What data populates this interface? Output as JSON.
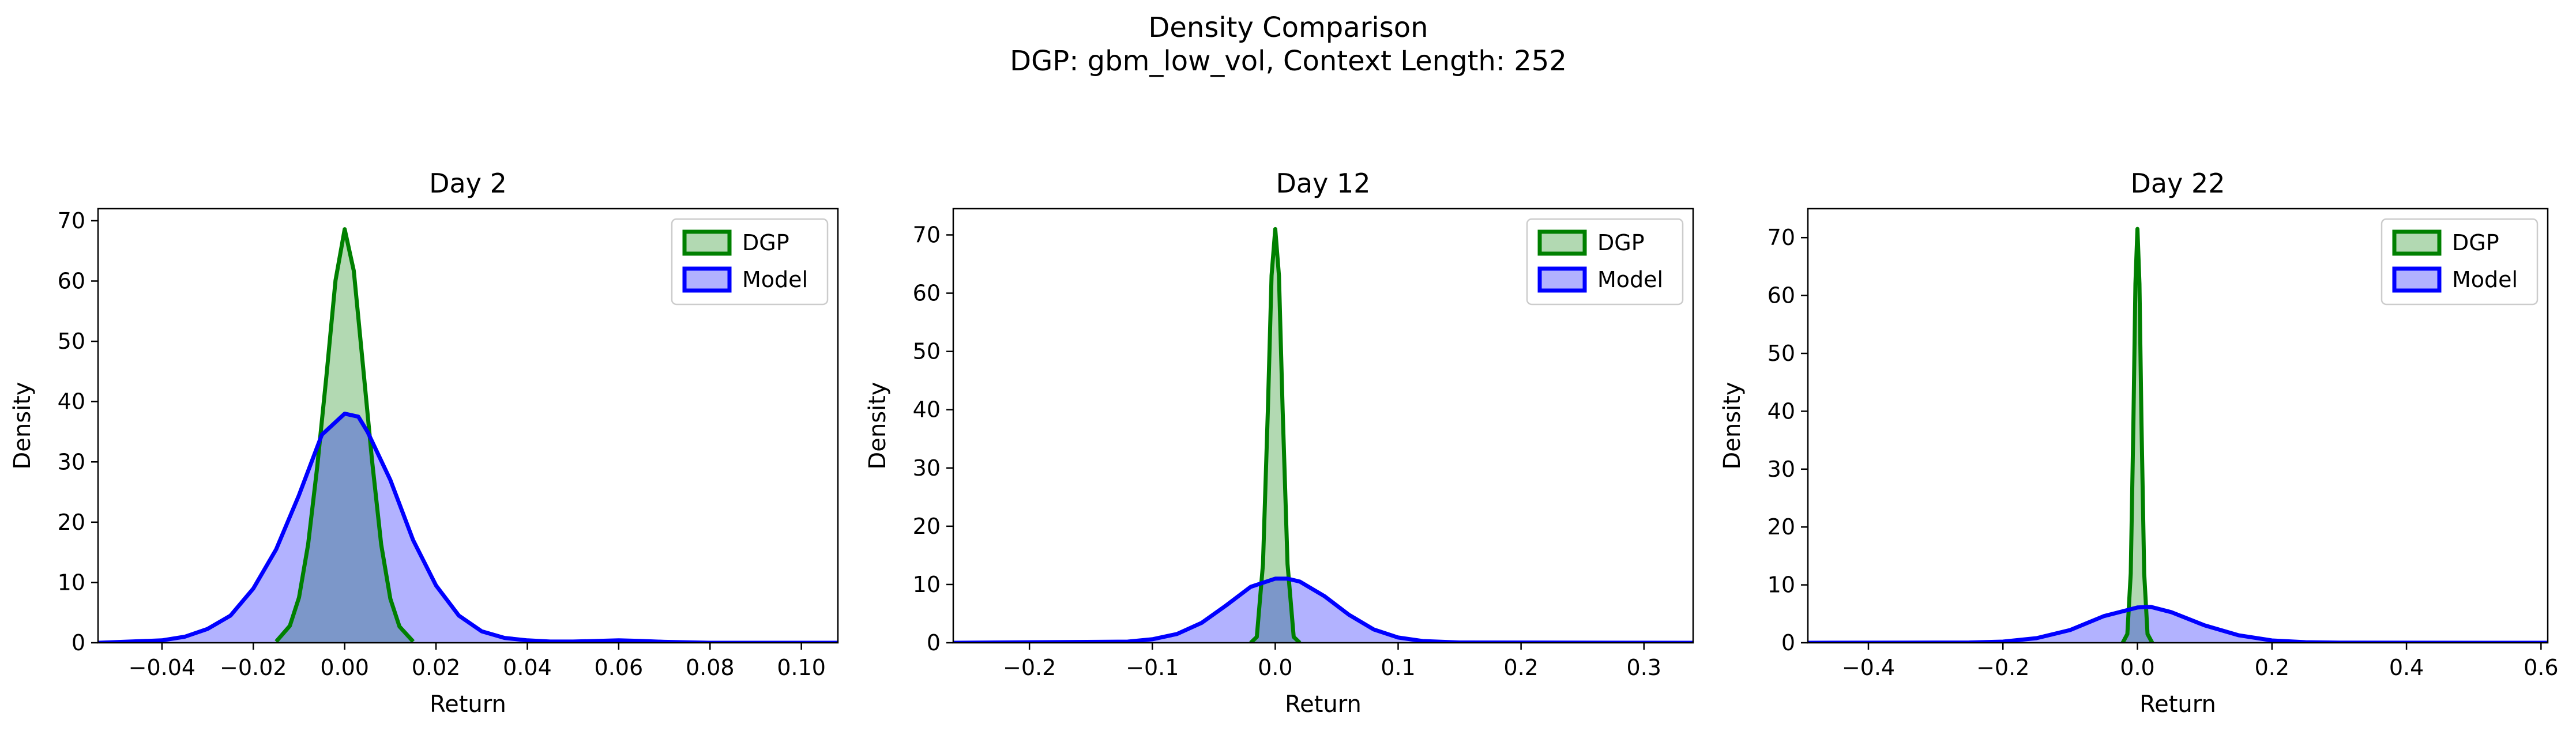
{
  "figure": {
    "title": "Density Comparison",
    "subtitle": "DGP: gbm_low_vol, Context Length: 252"
  },
  "chart_data": [
    {
      "type": "area",
      "title": "Day 2",
      "xlabel": "Return",
      "ylabel": "Density",
      "xlim": [
        -0.054,
        0.108
      ],
      "ylim": [
        0,
        72
      ],
      "xticks": [
        -0.04,
        -0.02,
        0.0,
        0.02,
        0.04,
        0.06,
        0.08,
        0.1
      ],
      "xtick_labels": [
        "−0.04",
        "−0.02",
        "0.00",
        "0.02",
        "0.04",
        "0.06",
        "0.08",
        "0.10"
      ],
      "yticks": [
        0,
        10,
        20,
        30,
        40,
        50,
        60,
        70
      ],
      "ytick_labels": [
        "0",
        "10",
        "20",
        "30",
        "40",
        "50",
        "60",
        "70"
      ],
      "legend": "upper-right",
      "grid": false,
      "series": [
        {
          "name": "DGP",
          "color": "#008000",
          "fill": "#008000",
          "x": [
            -0.015,
            -0.012,
            -0.01,
            -0.008,
            -0.006,
            -0.004,
            -0.002,
            0.0,
            0.002,
            0.004,
            0.006,
            0.008,
            0.01,
            0.012,
            0.015
          ],
          "y": [
            0.2,
            2.8,
            7.5,
            16.3,
            29.2,
            44.2,
            60.1,
            68.6,
            61.7,
            46.1,
            30.2,
            16.3,
            7.3,
            2.7,
            0.2
          ]
        },
        {
          "name": "Model",
          "color": "#0000ff",
          "fill": "#0000ff",
          "x": [
            -0.054,
            -0.04,
            -0.035,
            -0.03,
            -0.025,
            -0.02,
            -0.015,
            -0.01,
            -0.005,
            0.0,
            0.003,
            0.005,
            0.01,
            0.015,
            0.02,
            0.025,
            0.03,
            0.035,
            0.04,
            0.045,
            0.05,
            0.055,
            0.06,
            0.065,
            0.07,
            0.08,
            0.09,
            0.108
          ],
          "y": [
            0.0,
            0.4,
            1.0,
            2.3,
            4.5,
            9.0,
            15.5,
            24.5,
            34.5,
            38.0,
            37.5,
            35.0,
            27.0,
            17.0,
            9.5,
            4.5,
            1.9,
            0.8,
            0.4,
            0.2,
            0.2,
            0.3,
            0.4,
            0.3,
            0.15,
            0.0,
            0.0,
            0.0
          ]
        }
      ]
    },
    {
      "type": "area",
      "title": "Day 12",
      "xlabel": "Return",
      "ylabel": "Density",
      "xlim": [
        -0.262,
        0.34
      ],
      "ylim": [
        0,
        74.5
      ],
      "xticks": [
        -0.2,
        -0.1,
        0.0,
        0.1,
        0.2,
        0.3
      ],
      "xtick_labels": [
        "−0.2",
        "−0.1",
        "0.0",
        "0.1",
        "0.2",
        "0.3"
      ],
      "yticks": [
        0,
        10,
        20,
        30,
        40,
        50,
        60,
        70
      ],
      "ytick_labels": [
        "0",
        "10",
        "20",
        "30",
        "40",
        "50",
        "60",
        "70"
      ],
      "legend": "upper-right",
      "grid": false,
      "series": [
        {
          "name": "DGP",
          "color": "#008000",
          "fill": "#008000",
          "x": [
            -0.02,
            -0.015,
            -0.01,
            -0.006,
            -0.003,
            0.0,
            0.003,
            0.006,
            0.01,
            0.015,
            0.02
          ],
          "y": [
            0.0,
            1.0,
            13.5,
            40.0,
            63.0,
            71.0,
            63.0,
            40.0,
            13.5,
            1.0,
            0.0
          ]
        },
        {
          "name": "Model",
          "color": "#0000ff",
          "fill": "#0000ff",
          "x": [
            -0.262,
            -0.12,
            -0.1,
            -0.08,
            -0.06,
            -0.04,
            -0.02,
            0.0,
            0.01,
            0.02,
            0.04,
            0.06,
            0.08,
            0.1,
            0.12,
            0.15,
            0.34
          ],
          "y": [
            0.0,
            0.2,
            0.6,
            1.5,
            3.4,
            6.4,
            9.6,
            11.0,
            11.0,
            10.5,
            8.0,
            4.8,
            2.3,
            0.9,
            0.3,
            0.05,
            0.0
          ]
        }
      ]
    },
    {
      "type": "area",
      "title": "Day 22",
      "xlabel": "Return",
      "ylabel": "Density",
      "xlim": [
        -0.49,
        0.61
      ],
      "ylim": [
        0,
        75
      ],
      "xticks": [
        -0.4,
        -0.2,
        0.0,
        0.2,
        0.4,
        0.6
      ],
      "xtick_labels": [
        "−0.4",
        "−0.2",
        "0.0",
        "0.2",
        "0.4",
        "0.6"
      ],
      "yticks": [
        0,
        10,
        20,
        30,
        40,
        50,
        60,
        70
      ],
      "ytick_labels": [
        "0",
        "10",
        "20",
        "30",
        "40",
        "50",
        "60",
        "70"
      ],
      "legend": "upper-right",
      "grid": false,
      "series": [
        {
          "name": "DGP",
          "color": "#008000",
          "fill": "#008000",
          "x": [
            -0.022,
            -0.015,
            -0.01,
            -0.006,
            -0.003,
            0.0,
            0.003,
            0.006,
            0.01,
            0.015,
            0.022
          ],
          "y": [
            0.0,
            1.5,
            12.0,
            38.0,
            62.0,
            71.5,
            62.0,
            38.0,
            12.0,
            1.5,
            0.0
          ]
        },
        {
          "name": "Model",
          "color": "#0000ff",
          "fill": "#0000ff",
          "x": [
            -0.49,
            -0.25,
            -0.2,
            -0.15,
            -0.1,
            -0.05,
            0.0,
            0.02,
            0.05,
            0.1,
            0.15,
            0.2,
            0.25,
            0.3,
            0.61
          ],
          "y": [
            0.0,
            0.05,
            0.2,
            0.8,
            2.2,
            4.6,
            6.1,
            6.2,
            5.3,
            3.0,
            1.3,
            0.4,
            0.1,
            0.02,
            0.0
          ]
        }
      ]
    }
  ]
}
